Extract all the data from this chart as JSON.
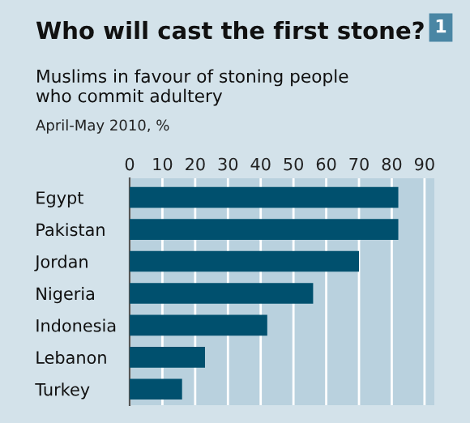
{
  "chart_data": {
    "type": "bar",
    "orientation": "horizontal",
    "title": "Who will cast the first stone?",
    "subtitle": "Muslims in favour of stoning people\nwho commit adultery",
    "annotations": [
      "April-May 2010, %",
      "1"
    ],
    "categories": [
      "Egypt",
      "Pakistan",
      "Jordan",
      "Nigeria",
      "Indonesia",
      "Lebanon",
      "Turkey"
    ],
    "values": [
      82,
      82,
      70,
      56,
      42,
      23,
      16
    ],
    "color": "#00506e",
    "xlim": [
      0,
      93
    ],
    "xticks": [
      0,
      10,
      20,
      30,
      40,
      50,
      60,
      70,
      80,
      90
    ],
    "grid": "x"
  }
}
